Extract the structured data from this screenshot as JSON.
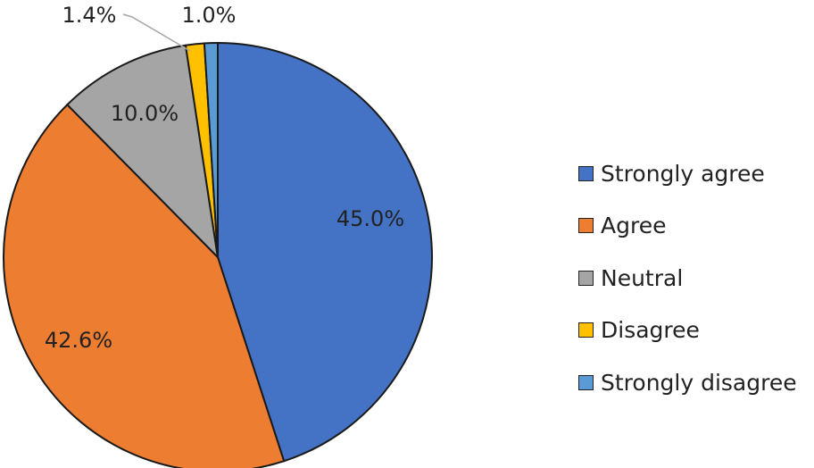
{
  "chart_data": {
    "type": "pie",
    "title": "",
    "legend_position": "right",
    "slices": [
      {
        "name": "Strongly agree",
        "value": 45.0,
        "label": "45.0%",
        "color": "#4472C4"
      },
      {
        "name": "Agree",
        "value": 42.6,
        "label": "42.6%",
        "color": "#ED7D31"
      },
      {
        "name": "Neutral",
        "value": 10.0,
        "label": "10.0%",
        "color": "#A5A5A5"
      },
      {
        "name": "Disagree",
        "value": 1.4,
        "label": "1.4%",
        "color": "#FFC000"
      },
      {
        "name": "Strongly disagree",
        "value": 1.0,
        "label": "1.0%",
        "color": "#5B9BD5"
      }
    ]
  }
}
